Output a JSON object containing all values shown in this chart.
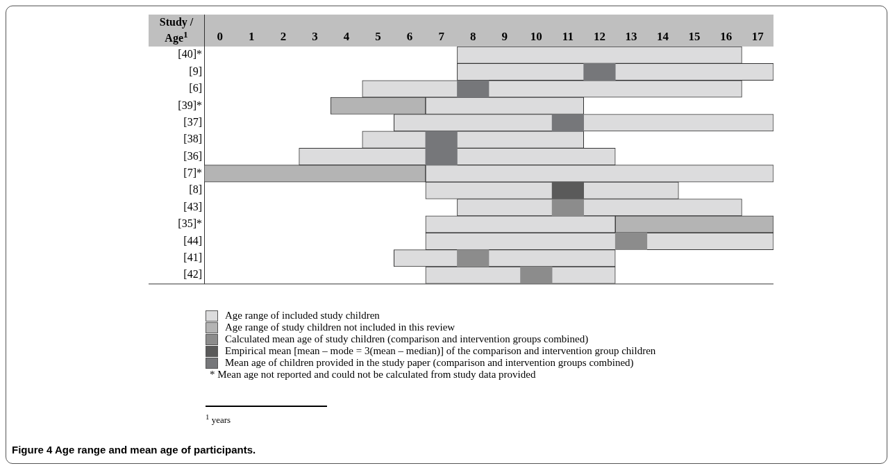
{
  "chart_data": {
    "type": "bar",
    "orientation": "horizontal",
    "title": "Figure 4 Age range and mean age of participants.",
    "xlabel": "Study / Age$^{1}$",
    "categories": [
      "[40]*",
      "[9]",
      "[6]",
      "[39]*",
      "[37]",
      "[38]",
      "[36]",
      "[7]*",
      "[8]",
      "[43]",
      "[35]*",
      "[44]",
      "[41]",
      "[42]"
    ],
    "series": [
      {
        "name": "Age range of included study children",
        "color": "#dcdcdd",
        "base": [
          8,
          8,
          5,
          7,
          6,
          5,
          3,
          7,
          7,
          8,
          7,
          7,
          6,
          7
        ],
        "values": [
          9,
          10,
          12,
          5,
          12,
          7,
          10,
          11,
          8,
          9,
          6,
          11,
          7,
          6
        ]
      },
      {
        "name": "Age range of study children not included in this review",
        "color": "#b4b4b4",
        "base": [
          null,
          null,
          null,
          4,
          null,
          null,
          null,
          0,
          null,
          null,
          13,
          null,
          null,
          null
        ],
        "values": [
          null,
          null,
          null,
          3,
          null,
          null,
          null,
          7,
          null,
          null,
          5,
          null,
          null,
          null
        ]
      },
      {
        "name": "Calculated mean age of study children (comparison and intervention groups combined)",
        "color": "#8c8c8c",
        "base": [
          null,
          null,
          null,
          null,
          null,
          null,
          null,
          null,
          null,
          11,
          null,
          13,
          8,
          10
        ],
        "values": [
          null,
          null,
          null,
          null,
          null,
          null,
          null,
          null,
          null,
          1,
          null,
          1,
          1,
          1
        ]
      },
      {
        "name": "Empirical mean [mean – mode = 3(mean – median)] of the comparison and intervention group children",
        "color": "#5a5a5a",
        "base": [
          null,
          null,
          null,
          null,
          null,
          null,
          null,
          null,
          11,
          null,
          null,
          null,
          null,
          null
        ],
        "values": [
          null,
          null,
          null,
          null,
          null,
          null,
          null,
          null,
          1,
          null,
          null,
          null,
          null,
          null
        ]
      },
      {
        "name": "Mean age of children provided in the study paper (comparison and intervention groups combined)",
        "color": "#76777a",
        "base": [
          null,
          12,
          8,
          null,
          11,
          7,
          7,
          null,
          null,
          null,
          null,
          null,
          null,
          null
        ],
        "values": [
          null,
          1,
          1,
          null,
          1,
          1,
          1,
          null,
          null,
          null,
          null,
          null,
          null,
          null
        ]
      }
    ],
    "xlim": [
      0,
      18
    ],
    "xticks": [
      {
        "value": 0.5,
        "label": "0"
      },
      {
        "value": 1.5,
        "label": "1"
      },
      {
        "value": 2.5,
        "label": "2"
      },
      {
        "value": 3.5,
        "label": "3"
      },
      {
        "value": 4.5,
        "label": "4"
      },
      {
        "value": 5.5,
        "label": "5"
      },
      {
        "value": 6.5,
        "label": "6"
      },
      {
        "value": 7.5,
        "label": "7"
      },
      {
        "value": 8.5,
        "label": "8"
      },
      {
        "value": 9.5,
        "label": "9"
      },
      {
        "value": 10.5,
        "label": "10"
      },
      {
        "value": 11.5,
        "label": "11"
      },
      {
        "value": 12.5,
        "label": "12"
      },
      {
        "value": 13.5,
        "label": "13"
      },
      {
        "value": 14.5,
        "label": "14"
      },
      {
        "value": 15.5,
        "label": "15"
      },
      {
        "value": 16.5,
        "label": "16"
      },
      {
        "value": 17.5,
        "label": "17"
      }
    ],
    "grid": false,
    "legend": "bottom",
    "annotations": [
      "* Mean age not reported and could not be calculated from study data provided",
      "$^{1}$ years"
    ]
  }
}
